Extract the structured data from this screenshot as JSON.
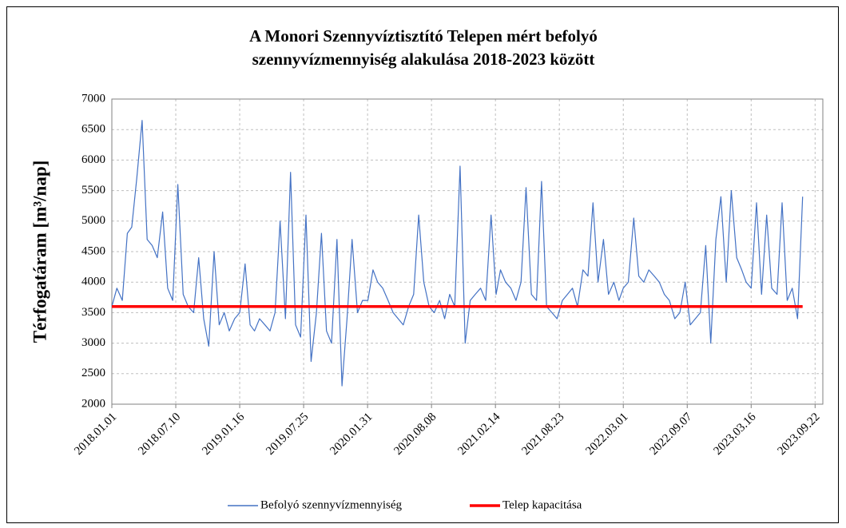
{
  "chart_data": {
    "type": "line",
    "title": [
      "A Monori Szennyvíztisztító Telepen mért befolyó",
      "szennyvízmennyiség alakulása 2018-2023 között"
    ],
    "ylabel": "Térfogatáram [m³/nap]",
    "xlim": [
      "2018.01.01",
      "2023.10.15"
    ],
    "xticks": [
      "2018.01.01",
      "2018.07.10",
      "2019.01.16",
      "2019.07.25",
      "2020.01.31",
      "2020.08.08",
      "2021.02.14",
      "2021.08.23",
      "2022.03.01",
      "2022.09.07",
      "2023.03.16",
      "2023.09.22"
    ],
    "ylim": [
      2000,
      7000
    ],
    "yticks": [
      2000,
      2500,
      3000,
      3500,
      4000,
      4500,
      5000,
      5500,
      6000,
      6500,
      7000
    ],
    "grid": true,
    "legend": "bottom",
    "series": [
      {
        "name": "Befolyó szennyvízmennyiség",
        "color": "#4472c4",
        "x": [
          "2018.01.01",
          "2018.01.16",
          "2018.02.01",
          "2018.02.16",
          "2018.03.01",
          "2018.03.16",
          "2018.04.01",
          "2018.04.16",
          "2018.05.01",
          "2018.05.16",
          "2018.06.01",
          "2018.06.16",
          "2018.07.01",
          "2018.07.16",
          "2018.08.01",
          "2018.08.16",
          "2018.09.01",
          "2018.09.16",
          "2018.10.01",
          "2018.10.16",
          "2018.11.01",
          "2018.11.16",
          "2018.12.01",
          "2018.12.16",
          "2019.01.01",
          "2019.01.16",
          "2019.02.01",
          "2019.02.16",
          "2019.03.01",
          "2019.03.16",
          "2019.04.01",
          "2019.04.16",
          "2019.05.01",
          "2019.05.16",
          "2019.06.01",
          "2019.06.16",
          "2019.07.01",
          "2019.07.16",
          "2019.08.01",
          "2019.08.16",
          "2019.09.01",
          "2019.09.16",
          "2019.10.01",
          "2019.10.16",
          "2019.11.01",
          "2019.11.16",
          "2019.12.01",
          "2019.12.16",
          "2020.01.01",
          "2020.01.16",
          "2020.02.01",
          "2020.02.16",
          "2020.03.01",
          "2020.03.16",
          "2020.04.01",
          "2020.04.16",
          "2020.05.01",
          "2020.05.16",
          "2020.06.01",
          "2020.06.16",
          "2020.07.01",
          "2020.07.16",
          "2020.08.01",
          "2020.08.16",
          "2020.09.01",
          "2020.09.16",
          "2020.10.01",
          "2020.10.16",
          "2020.11.01",
          "2020.11.16",
          "2020.12.01",
          "2020.12.16",
          "2021.01.01",
          "2021.01.16",
          "2021.02.01",
          "2021.02.16",
          "2021.03.01",
          "2021.03.16",
          "2021.04.01",
          "2021.04.16",
          "2021.05.01",
          "2021.05.16",
          "2021.06.01",
          "2021.06.16",
          "2021.07.01",
          "2021.07.16",
          "2021.08.01",
          "2021.08.16",
          "2021.09.01",
          "2021.09.16",
          "2021.10.01",
          "2021.10.16",
          "2021.11.01",
          "2021.11.16",
          "2021.12.01",
          "2021.12.16",
          "2022.01.01",
          "2022.01.16",
          "2022.02.01",
          "2022.02.16",
          "2022.03.01",
          "2022.03.16",
          "2022.04.01",
          "2022.04.16",
          "2022.05.01",
          "2022.05.16",
          "2022.06.01",
          "2022.06.16",
          "2022.07.01",
          "2022.07.16",
          "2022.08.01",
          "2022.08.16",
          "2022.09.01",
          "2022.09.16",
          "2022.10.01",
          "2022.10.16",
          "2022.11.01",
          "2022.11.16",
          "2022.12.01",
          "2022.12.16",
          "2023.01.01",
          "2023.01.16",
          "2023.02.01",
          "2023.02.16",
          "2023.03.01",
          "2023.03.16",
          "2023.04.01",
          "2023.04.16",
          "2023.05.01",
          "2023.05.16",
          "2023.06.01",
          "2023.06.16",
          "2023.07.01",
          "2023.07.16",
          "2023.08.01",
          "2023.08.16"
        ],
        "values": [
          3600,
          3900,
          3700,
          4800,
          4900,
          5700,
          6650,
          4700,
          4600,
          4400,
          5150,
          3900,
          3700,
          5600,
          3800,
          3600,
          3500,
          4400,
          3400,
          2950,
          4500,
          3300,
          3500,
          3200,
          3400,
          3500,
          4300,
          3300,
          3200,
          3400,
          3300,
          3200,
          3500,
          5000,
          3400,
          5800,
          3300,
          3100,
          5100,
          2700,
          3500,
          4800,
          3200,
          3000,
          4700,
          2300,
          3400,
          4700,
          3500,
          3700,
          3700,
          4200,
          4000,
          3900,
          3700,
          3500,
          3400,
          3300,
          3600,
          3800,
          5100,
          4000,
          3600,
          3500,
          3700,
          3400,
          3800,
          3600,
          5900,
          3000,
          3700,
          3800,
          3900,
          3700,
          5100,
          3800,
          4200,
          4000,
          3900,
          3700,
          4000,
          5550,
          3800,
          3700,
          5650,
          3600,
          3500,
          3400,
          3700,
          3800,
          3900,
          3600,
          4200,
          4100,
          5300,
          4000,
          4700,
          3800,
          4000,
          3700,
          3900,
          4000,
          5050,
          4100,
          4000,
          4200,
          4100,
          4000,
          3800,
          3700,
          3400,
          3500,
          4000,
          3300,
          3400,
          3500,
          4600,
          3000,
          4700,
          5400,
          4000,
          5500,
          4400,
          4200,
          4000,
          3900,
          5300,
          3800,
          5100,
          3900,
          3800,
          5300,
          3700,
          3900,
          3400,
          5400
        ]
      },
      {
        "name": "Telep kapacitása",
        "color": "#ff0000",
        "x": [
          "2018.01.01",
          "2023.08.16"
        ],
        "values": [
          3600,
          3600
        ]
      }
    ]
  }
}
